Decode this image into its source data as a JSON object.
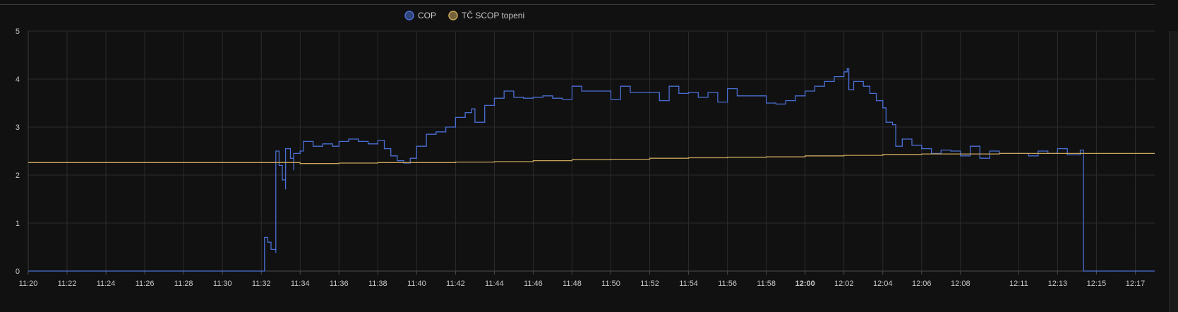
{
  "chart_data": {
    "type": "line",
    "step": true,
    "x_unit": "time (HH:MM)",
    "xlim": [
      "11:20",
      "12:18"
    ],
    "ylim": [
      0,
      5
    ],
    "y_ticks": [
      "0",
      "1",
      "2",
      "3",
      "4",
      "5"
    ],
    "x_ticks": [
      {
        "t": "11:20",
        "label": "11:20",
        "bold": false
      },
      {
        "t": "11:22",
        "label": "11:22",
        "bold": false
      },
      {
        "t": "11:24",
        "label": "11:24",
        "bold": false
      },
      {
        "t": "11:26",
        "label": "11:26",
        "bold": false
      },
      {
        "t": "11:28",
        "label": "11:28",
        "bold": false
      },
      {
        "t": "11:30",
        "label": "11:30",
        "bold": false
      },
      {
        "t": "11:32",
        "label": "11:32",
        "bold": false
      },
      {
        "t": "11:34",
        "label": "11:34",
        "bold": false
      },
      {
        "t": "11:36",
        "label": "11:36",
        "bold": false
      },
      {
        "t": "11:38",
        "label": "11:38",
        "bold": false
      },
      {
        "t": "11:40",
        "label": "11:40",
        "bold": false
      },
      {
        "t": "11:42",
        "label": "11:42",
        "bold": false
      },
      {
        "t": "11:44",
        "label": "11:44",
        "bold": false
      },
      {
        "t": "11:46",
        "label": "11:46",
        "bold": false
      },
      {
        "t": "11:48",
        "label": "11:48",
        "bold": false
      },
      {
        "t": "11:50",
        "label": "11:50",
        "bold": false
      },
      {
        "t": "11:52",
        "label": "11:52",
        "bold": false
      },
      {
        "t": "11:54",
        "label": "11:54",
        "bold": false
      },
      {
        "t": "11:56",
        "label": "11:56",
        "bold": false
      },
      {
        "t": "11:58",
        "label": "11:58",
        "bold": false
      },
      {
        "t": "12:00",
        "label": "12:00",
        "bold": true
      },
      {
        "t": "12:02",
        "label": "12:02",
        "bold": false
      },
      {
        "t": "12:04",
        "label": "12:04",
        "bold": false
      },
      {
        "t": "12:06",
        "label": "12:06",
        "bold": false
      },
      {
        "t": "12:08",
        "label": "12:08",
        "bold": false
      },
      {
        "t": "12:11",
        "label": "12:11",
        "bold": false
      },
      {
        "t": "12:13",
        "label": "12:13",
        "bold": false
      },
      {
        "t": "12:15",
        "label": "12:15",
        "bold": false
      },
      {
        "t": "12:17",
        "label": "12:17",
        "bold": false
      }
    ],
    "grid": true,
    "legend_position": "top-center",
    "series": [
      {
        "name": "COP",
        "color": "#4a6fd4",
        "points": [
          [
            "11:20",
            0
          ],
          [
            "11:32:10",
            0
          ],
          [
            "11:32:10",
            0.7
          ],
          [
            "11:32:20",
            0.6
          ],
          [
            "11:32:30",
            0.45
          ],
          [
            "11:32:45",
            0.38
          ],
          [
            "11:32:45",
            2.5
          ],
          [
            "11:32:55",
            2.2
          ],
          [
            "11:33:05",
            1.9
          ],
          [
            "11:33:15",
            1.7
          ],
          [
            "11:33:15",
            2.55
          ],
          [
            "11:33:30",
            2.35
          ],
          [
            "11:33:40",
            2.1
          ],
          [
            "11:33:40",
            2.45
          ],
          [
            "11:34",
            2.5
          ],
          [
            "11:34:10",
            2.7
          ],
          [
            "11:34:40",
            2.6
          ],
          [
            "11:35:10",
            2.65
          ],
          [
            "11:35:40",
            2.6
          ],
          [
            "11:36",
            2.7
          ],
          [
            "11:36:30",
            2.75
          ],
          [
            "11:37",
            2.7
          ],
          [
            "11:37:30",
            2.65
          ],
          [
            "11:38",
            2.72
          ],
          [
            "11:38:20",
            2.55
          ],
          [
            "11:38:40",
            2.4
          ],
          [
            "11:39",
            2.3
          ],
          [
            "11:39:20",
            2.25
          ],
          [
            "11:39:40",
            2.35
          ],
          [
            "11:40",
            2.6
          ],
          [
            "11:40:30",
            2.85
          ],
          [
            "11:41",
            2.9
          ],
          [
            "11:41:30",
            3.0
          ],
          [
            "11:42",
            3.2
          ],
          [
            "11:42:30",
            3.3
          ],
          [
            "11:42:50",
            3.38
          ],
          [
            "11:43",
            3.1
          ],
          [
            "11:43:30",
            3.45
          ],
          [
            "11:44",
            3.6
          ],
          [
            "11:44:30",
            3.75
          ],
          [
            "11:45",
            3.62
          ],
          [
            "11:45:30",
            3.6
          ],
          [
            "11:46",
            3.62
          ],
          [
            "11:46:30",
            3.65
          ],
          [
            "11:47",
            3.6
          ],
          [
            "11:47:30",
            3.58
          ],
          [
            "11:48",
            3.85
          ],
          [
            "11:48:30",
            3.75
          ],
          [
            "11:49",
            3.75
          ],
          [
            "11:50",
            3.58
          ],
          [
            "11:50:30",
            3.85
          ],
          [
            "11:51",
            3.72
          ],
          [
            "11:52",
            3.72
          ],
          [
            "11:52:30",
            3.55
          ],
          [
            "11:53",
            3.85
          ],
          [
            "11:53:30",
            3.7
          ],
          [
            "11:54",
            3.72
          ],
          [
            "11:54:30",
            3.62
          ],
          [
            "11:55",
            3.72
          ],
          [
            "11:55:30",
            3.52
          ],
          [
            "11:56",
            3.8
          ],
          [
            "11:56:30",
            3.65
          ],
          [
            "11:57",
            3.65
          ],
          [
            "11:58",
            3.5
          ],
          [
            "11:58:30",
            3.48
          ],
          [
            "11:59",
            3.55
          ],
          [
            "11:59:30",
            3.65
          ],
          [
            "12:00",
            3.75
          ],
          [
            "12:00:30",
            3.85
          ],
          [
            "12:01",
            3.95
          ],
          [
            "12:01:30",
            4.05
          ],
          [
            "12:02",
            4.15
          ],
          [
            "12:02:10",
            4.22
          ],
          [
            "12:02:15",
            3.78
          ],
          [
            "12:02:30",
            3.95
          ],
          [
            "12:03",
            3.85
          ],
          [
            "12:03:20",
            3.7
          ],
          [
            "12:03:40",
            3.55
          ],
          [
            "12:04",
            3.4
          ],
          [
            "12:04:10",
            3.1
          ],
          [
            "12:04:30",
            3.05
          ],
          [
            "12:04:40",
            2.6
          ],
          [
            "12:05",
            2.75
          ],
          [
            "12:05:30",
            2.62
          ],
          [
            "12:06",
            2.55
          ],
          [
            "12:06:30",
            2.45
          ],
          [
            "12:07",
            2.52
          ],
          [
            "12:07:30",
            2.5
          ],
          [
            "12:08",
            2.4
          ],
          [
            "12:08:30",
            2.6
          ],
          [
            "12:09",
            2.35
          ],
          [
            "12:09:30",
            2.5
          ],
          [
            "12:10",
            2.45
          ],
          [
            "12:11",
            2.45
          ],
          [
            "12:11:30",
            2.4
          ],
          [
            "12:12",
            2.5
          ],
          [
            "12:12:30",
            2.45
          ],
          [
            "12:13",
            2.55
          ],
          [
            "12:13:30",
            2.42
          ],
          [
            "12:14:10",
            2.52
          ],
          [
            "12:14:20",
            0
          ],
          [
            "12:18",
            0
          ]
        ]
      },
      {
        "name": "TČ SCOP topeni",
        "color": "#c9a55a",
        "points": [
          [
            "11:20",
            2.26
          ],
          [
            "11:32:30",
            2.26
          ],
          [
            "11:34",
            2.24
          ],
          [
            "11:36",
            2.25
          ],
          [
            "11:38",
            2.26
          ],
          [
            "11:40",
            2.26
          ],
          [
            "11:42",
            2.27
          ],
          [
            "11:44",
            2.28
          ],
          [
            "11:46",
            2.3
          ],
          [
            "11:48",
            2.32
          ],
          [
            "11:50",
            2.33
          ],
          [
            "11:52",
            2.35
          ],
          [
            "11:54",
            2.36
          ],
          [
            "11:56",
            2.37
          ],
          [
            "11:58",
            2.38
          ],
          [
            "12:00",
            2.4
          ],
          [
            "12:02",
            2.41
          ],
          [
            "12:04",
            2.43
          ],
          [
            "12:06",
            2.44
          ],
          [
            "12:08",
            2.44
          ],
          [
            "12:10",
            2.45
          ],
          [
            "12:12",
            2.45
          ],
          [
            "12:14",
            2.45
          ],
          [
            "12:18",
            2.45
          ]
        ]
      }
    ]
  }
}
